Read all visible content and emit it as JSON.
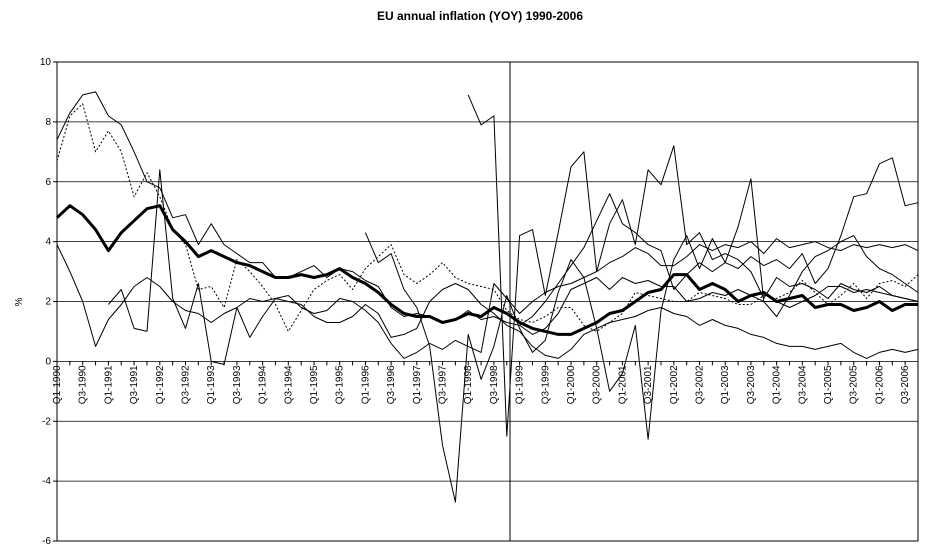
{
  "chart_data": {
    "type": "line",
    "title": "EU annual inflation (YOY) 1990-2006",
    "y_label": "%",
    "categories": [
      "Q1-1990",
      null,
      "Q3-1990",
      null,
      "Q1-1991",
      null,
      "Q3-1991",
      null,
      "Q1-1992",
      null,
      "Q3-1992",
      null,
      "Q1-1993",
      null,
      "Q3-1993",
      null,
      "Q1-1994",
      null,
      "Q3-1994",
      null,
      "Q1-1995",
      null,
      "Q3-1995",
      null,
      "Q1-1996",
      null,
      "Q3-1996",
      null,
      "Q1-1997",
      null,
      "Q3-1997",
      null,
      "Q1-1998",
      null,
      "Q3-1998",
      null,
      "Q1-1999",
      null,
      "Q3-1999",
      null,
      "Q1-2000",
      null,
      "Q3-2000",
      null,
      "Q1-2001",
      null,
      "Q3-2001",
      null,
      "Q1-2002",
      null,
      "Q3-2002",
      null,
      "Q1-2003",
      null,
      "Q3-2003",
      null,
      "Q1-2004",
      null,
      "Q3-2004",
      null,
      "Q1-2005",
      null,
      "Q3-2005",
      null,
      "Q1-2006",
      null,
      "Q3-2006",
      null
    ],
    "ylim": [
      -6,
      10
    ],
    "yticks": [
      -6,
      -4,
      -2,
      0,
      2,
      4,
      6,
      8,
      10
    ],
    "grid": true,
    "series": [
      {
        "color": "#000000",
        "style": "thin",
        "values": [
          7.4,
          8.3,
          8.9,
          9.0,
          8.2,
          7.9,
          7.0,
          6.0,
          5.8,
          4.8,
          4.9,
          3.9,
          4.6,
          3.9,
          3.6,
          3.3,
          3.3,
          2.8,
          2.8,
          3.0,
          3.2,
          2.8,
          3.1,
          3.0,
          2.7,
          2.5,
          1.8,
          1.5,
          1.6,
          1.5,
          1.3,
          1.4,
          1.7,
          1.4,
          1.5,
          1.3,
          1.2,
          0.9,
          1.1,
          1.6,
          2.4,
          2.6,
          2.8,
          2.4,
          2.8,
          2.6,
          2.7,
          2.5,
          2.5,
          2.0,
          2.1,
          2.3,
          2.2,
          2.4,
          2.2,
          2.0,
          2.0,
          1.8,
          2.0,
          2.2,
          2.5,
          2.5,
          2.3,
          2.4,
          2.3,
          2.2,
          2.1,
          2.0
        ]
      },
      {
        "color": "#000000",
        "style": "thin",
        "values": [
          3.9,
          3.0,
          2.0,
          0.5,
          1.4,
          1.9,
          2.5,
          2.8,
          2.5,
          2.0,
          1.7,
          1.6,
          1.3,
          1.6,
          1.8,
          2.1,
          2.0,
          2.1,
          2.2,
          1.8,
          1.6,
          1.7,
          2.1,
          2.0,
          1.7,
          1.3,
          0.6,
          0.1,
          0.3,
          0.6,
          0.4,
          0.7,
          0.5,
          0.3,
          2.6,
          2.1,
          1.6,
          2.0,
          2.3,
          2.5,
          2.6,
          2.8,
          3.0,
          3.3,
          3.5,
          3.8,
          3.6,
          3.2,
          3.2,
          3.5,
          3.9,
          3.7,
          3.9,
          3.8,
          4.0,
          3.6,
          4.1,
          3.8,
          3.9,
          4.0,
          3.8,
          3.7,
          3.9,
          3.8,
          3.9,
          3.8,
          3.9,
          3.7
        ]
      },
      {
        "color": "#000000",
        "style": "thin",
        "values": [
          null,
          null,
          null,
          null,
          null,
          null,
          null,
          null,
          null,
          null,
          null,
          null,
          null,
          null,
          null,
          null,
          null,
          null,
          null,
          null,
          null,
          null,
          null,
          null,
          null,
          null,
          null,
          null,
          null,
          null,
          null,
          null,
          8.9,
          7.9,
          8.2,
          -2.5,
          4.2,
          4.4,
          2.2,
          4.3,
          6.5,
          7.0,
          3.0,
          4.6,
          5.4,
          3.9,
          6.4,
          5.9,
          7.2,
          3.9,
          4.3,
          3.4,
          3.6,
          3.4,
          3.0,
          2.1,
          2.8,
          2.5,
          2.6,
          2.4,
          2.1,
          2.6,
          2.4,
          2.3,
          2.5,
          2.2,
          2.1,
          2.0
        ]
      },
      {
        "color": "#000000",
        "style": "thin",
        "values": [
          null,
          null,
          null,
          null,
          null,
          null,
          null,
          null,
          null,
          null,
          null,
          null,
          null,
          null,
          null,
          null,
          null,
          null,
          null,
          null,
          null,
          null,
          null,
          null,
          4.3,
          3.3,
          3.6,
          2.4,
          1.8,
          0.5,
          -2.8,
          -4.7,
          0.9,
          -0.6,
          0.5,
          2.2,
          1.1,
          0.3,
          0.7,
          2.3,
          3.4,
          2.8,
          1.1,
          -1.0,
          -0.4,
          1.2,
          -2.6,
          1.7,
          3.4,
          4.2,
          3.1,
          4.1,
          3.3,
          4.5,
          6.1,
          2.0,
          1.5,
          2.2,
          3.0,
          3.5,
          3.7,
          4.0,
          4.2,
          3.5,
          3.1,
          2.9,
          2.6,
          2.3
        ]
      },
      {
        "color": "#000000",
        "style": "thin",
        "values": [
          null,
          null,
          null,
          null,
          1.9,
          2.4,
          1.1,
          1.0,
          6.4,
          2.1,
          1.1,
          2.6,
          0,
          -0.1,
          1.8,
          0.8,
          1.5,
          2.1,
          2.0,
          1.9,
          1.5,
          1.3,
          1.3,
          1.5,
          1.9,
          1.6,
          0.8,
          0.9,
          1.1,
          2.0,
          2.4,
          2.6,
          2.4,
          1.9,
          1.6,
          1.2,
          1.0,
          0.5,
          0.2,
          0.1,
          0.4,
          0.9,
          1.1,
          1.3,
          1.4,
          1.5,
          1.7,
          1.8,
          1.6,
          1.5,
          1.2,
          1.4,
          1.2,
          1.1,
          0.9,
          0.8,
          0.6,
          0.5,
          0.5,
          0.4,
          0.5,
          0.6,
          0.3,
          0.1,
          0.3,
          0.4,
          0.3,
          0.4
        ]
      },
      {
        "color": "#000000",
        "style": "thin",
        "values": [
          null,
          null,
          null,
          null,
          null,
          null,
          null,
          null,
          null,
          null,
          null,
          null,
          null,
          null,
          null,
          null,
          null,
          null,
          null,
          null,
          null,
          null,
          null,
          null,
          null,
          null,
          null,
          null,
          null,
          null,
          null,
          null,
          null,
          null,
          null,
          null,
          1.2,
          1.5,
          2.0,
          2.6,
          3.2,
          3.8,
          4.7,
          5.6,
          4.6,
          4.3,
          3.9,
          3.7,
          2.4,
          2.9,
          3.3,
          3.0,
          3.3,
          3.1,
          3.5,
          3.2,
          3.4,
          3.1,
          3.6,
          2.6,
          3.1,
          4.2,
          5.5,
          5.6,
          6.6,
          6.8,
          5.2,
          5.3
        ]
      },
      {
        "color": "#000000",
        "style": "dotted",
        "values": [
          6.7,
          8.2,
          8.6,
          7.0,
          7.7,
          7.0,
          5.5,
          6.3,
          5.5,
          4.4,
          3.9,
          2.4,
          2.5,
          1.8,
          3.4,
          3.0,
          2.5,
          1.9,
          1.0,
          1.7,
          2.4,
          2.7,
          2.9,
          2.4,
          3.1,
          3.5,
          3.9,
          2.9,
          2.6,
          2.9,
          3.3,
          2.8,
          2.6,
          2.5,
          2.4,
          1.7,
          1.4,
          1.3,
          1.5,
          1.8,
          1.8,
          1.2,
          1.0,
          1.3,
          1.6,
          2.3,
          2.2,
          2.1,
          2.0,
          2.0,
          2.3,
          2.2,
          2.1,
          1.9,
          1.9,
          2.2,
          2.1,
          2.3,
          2.7,
          2.3,
          1.9,
          2.2,
          2.6,
          2.1,
          2.6,
          2.7,
          2.5,
          2.9
        ]
      },
      {
        "color": "#000000",
        "style": "thick",
        "values": [
          4.8,
          5.2,
          4.9,
          4.4,
          3.7,
          4.3,
          4.7,
          5.1,
          5.2,
          4.4,
          4.0,
          3.5,
          3.7,
          3.5,
          3.3,
          3.2,
          3.0,
          2.8,
          2.8,
          2.9,
          2.8,
          2.9,
          3.1,
          2.8,
          2.6,
          2.3,
          1.9,
          1.6,
          1.5,
          1.5,
          1.3,
          1.4,
          1.6,
          1.5,
          1.8,
          1.6,
          1.3,
          1.1,
          1.0,
          0.9,
          0.9,
          1.1,
          1.3,
          1.6,
          1.7,
          2.0,
          2.3,
          2.4,
          2.9,
          2.9,
          2.4,
          2.6,
          2.4,
          2.0,
          2.2,
          2.3,
          2.0,
          2.1,
          2.2,
          1.8,
          1.9,
          1.9,
          1.7,
          1.8,
          2.0,
          1.7,
          1.9,
          1.9
        ]
      }
    ]
  }
}
